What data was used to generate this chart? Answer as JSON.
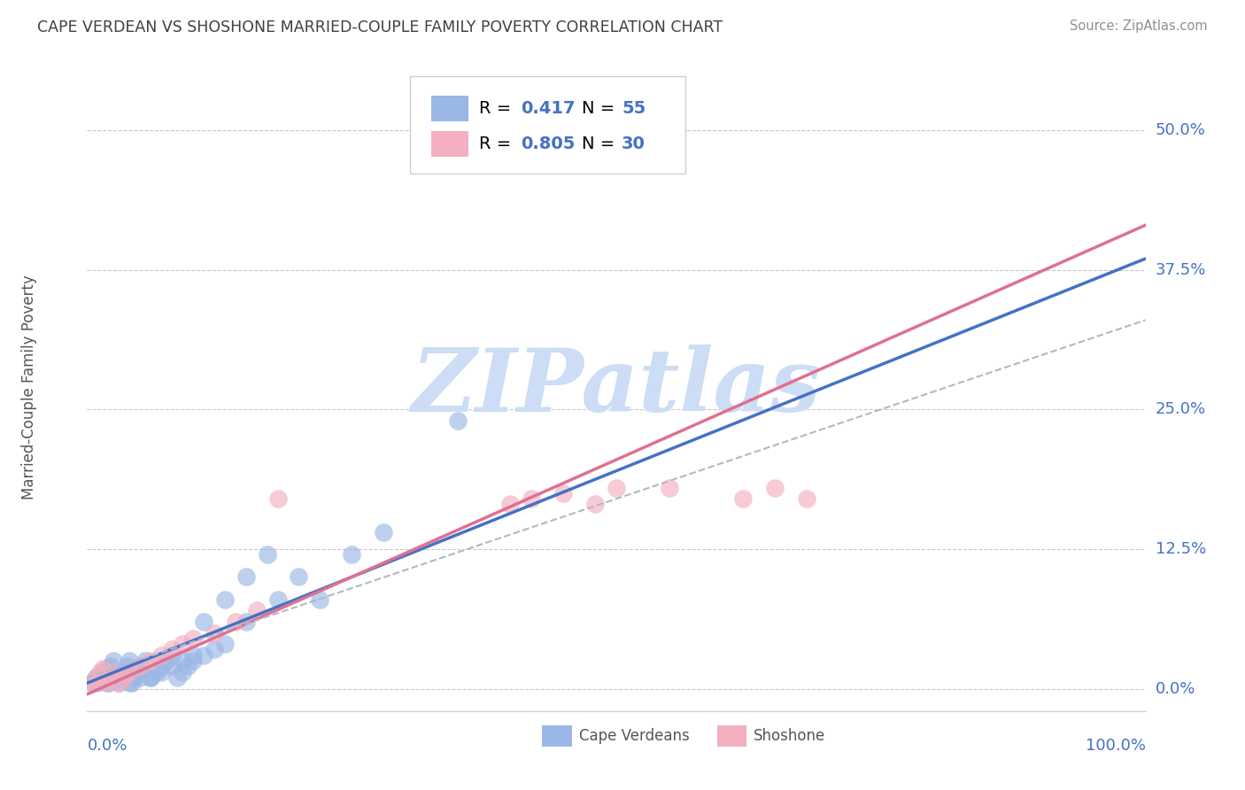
{
  "title": "CAPE VERDEAN VS SHOSHONE MARRIED-COUPLE FAMILY POVERTY CORRELATION CHART",
  "source": "Source: ZipAtlas.com",
  "ylabel": "Married-Couple Family Poverty",
  "ytick_labels": [
    "0.0%",
    "12.5%",
    "25.0%",
    "37.5%",
    "50.0%"
  ],
  "ytick_values": [
    0.0,
    0.125,
    0.25,
    0.375,
    0.5
  ],
  "xtick_labels": [
    "0.0%",
    "100.0%"
  ],
  "xlim": [
    0.0,
    1.0
  ],
  "ylim": [
    -0.02,
    0.56
  ],
  "cape_verdean_color": "#9ab7e6",
  "shoshone_color": "#f4afc0",
  "cape_verdean_line_color": "#4472c4",
  "shoshone_line_color": "#e07090",
  "midline_color": "#b0b8c8",
  "watermark_text": "ZIPatlas",
  "watermark_color": "#ccddf5",
  "background_color": "#ffffff",
  "grid_color": "#c8c8c8",
  "title_color": "#404040",
  "source_color": "#909090",
  "axis_label_color": "#4472c4",
  "legend_text_color": "#4472c4",
  "legend_r_color": "#4472c4",
  "legend_n_color": "#4472c4",
  "cape_verdean_line_slope": 0.38,
  "cape_verdean_line_intercept": 0.005,
  "shoshone_line_slope": 0.42,
  "shoshone_line_intercept": -0.005,
  "midline_slope": 0.32,
  "midline_intercept": 0.01,
  "cape_verdean_points_x": [
    0.005,
    0.008,
    0.01,
    0.012,
    0.015,
    0.018,
    0.02,
    0.022,
    0.025,
    0.03,
    0.032,
    0.035,
    0.038,
    0.04,
    0.042,
    0.045,
    0.048,
    0.05,
    0.055,
    0.06,
    0.065,
    0.07,
    0.075,
    0.08,
    0.085,
    0.09,
    0.095,
    0.1,
    0.11,
    0.12,
    0.13,
    0.15,
    0.18,
    0.2,
    0.22,
    0.25,
    0.28,
    0.01,
    0.015,
    0.02,
    0.025,
    0.03,
    0.035,
    0.04,
    0.05,
    0.06,
    0.07,
    0.08,
    0.09,
    0.1,
    0.11,
    0.13,
    0.15,
    0.17,
    0.35
  ],
  "cape_verdean_points_y": [
    0.005,
    0.01,
    0.008,
    0.012,
    0.015,
    0.018,
    0.005,
    0.02,
    0.025,
    0.008,
    0.01,
    0.015,
    0.02,
    0.025,
    0.005,
    0.01,
    0.015,
    0.02,
    0.025,
    0.01,
    0.015,
    0.02,
    0.025,
    0.03,
    0.01,
    0.015,
    0.02,
    0.025,
    0.03,
    0.035,
    0.04,
    0.06,
    0.08,
    0.1,
    0.08,
    0.12,
    0.14,
    0.005,
    0.01,
    0.005,
    0.01,
    0.005,
    0.01,
    0.005,
    0.01,
    0.01,
    0.015,
    0.02,
    0.025,
    0.03,
    0.06,
    0.08,
    0.1,
    0.12,
    0.24
  ],
  "shoshone_points_x": [
    0.005,
    0.008,
    0.01,
    0.012,
    0.015,
    0.018,
    0.02,
    0.025,
    0.03,
    0.035,
    0.04,
    0.05,
    0.06,
    0.07,
    0.08,
    0.09,
    0.1,
    0.12,
    0.14,
    0.16,
    0.18,
    0.55,
    0.62,
    0.65,
    0.68,
    0.4,
    0.42,
    0.45,
    0.48,
    0.5
  ],
  "shoshone_points_y": [
    0.005,
    0.008,
    0.01,
    0.015,
    0.018,
    0.005,
    0.01,
    0.015,
    0.005,
    0.01,
    0.015,
    0.02,
    0.025,
    0.03,
    0.035,
    0.04,
    0.045,
    0.05,
    0.06,
    0.07,
    0.17,
    0.18,
    0.17,
    0.18,
    0.17,
    0.165,
    0.17,
    0.175,
    0.165,
    0.18
  ]
}
